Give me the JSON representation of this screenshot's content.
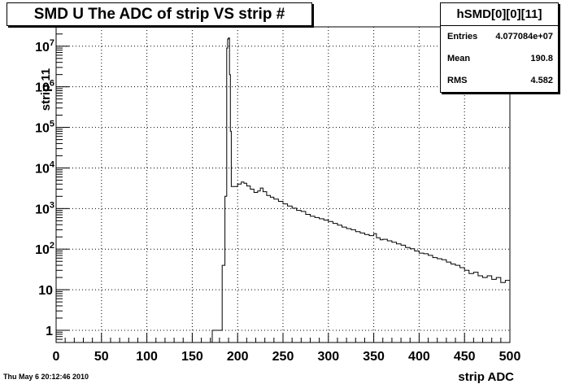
{
  "timestamp": "Thu May  6 20:12:46 2010",
  "stats": {
    "name": "hSMD[0][0][11]",
    "rows": [
      {
        "label": "Entries",
        "value": "4.077084e+07"
      },
      {
        "label": "Mean",
        "value": "190.8"
      },
      {
        "label": "RMS",
        "value": "4.582"
      }
    ]
  },
  "chart_data": {
    "type": "line",
    "title": "SMD U The ADC of strip VS strip #",
    "xlabel": "strip ADC",
    "ylabel": "strip 11",
    "xlim": [
      0,
      500
    ],
    "ylim": [
      0.5,
      30000000
    ],
    "log_y": true,
    "grid": true,
    "x_ticks": [
      {
        "v": 0,
        "label": "0"
      },
      {
        "v": 50,
        "label": "50"
      },
      {
        "v": 100,
        "label": "100"
      },
      {
        "v": 150,
        "label": "150"
      },
      {
        "v": 200,
        "label": "200"
      },
      {
        "v": 250,
        "label": "250"
      },
      {
        "v": 300,
        "label": "300"
      },
      {
        "v": 350,
        "label": "350"
      },
      {
        "v": 400,
        "label": "400"
      },
      {
        "v": 450,
        "label": "450"
      },
      {
        "v": 500,
        "label": "500"
      }
    ],
    "y_ticks": [
      {
        "v": 1,
        "label": "1",
        "exp": ""
      },
      {
        "v": 10,
        "label": "10",
        "exp": ""
      },
      {
        "v": 100,
        "label": "10",
        "exp": "2"
      },
      {
        "v": 1000,
        "label": "10",
        "exp": "3"
      },
      {
        "v": 10000,
        "label": "10",
        "exp": "4"
      },
      {
        "v": 100000,
        "label": "10",
        "exp": "5"
      },
      {
        "v": 1000000,
        "label": "10",
        "exp": "6"
      },
      {
        "v": 10000000,
        "label": "10",
        "exp": "7"
      }
    ],
    "series": [
      {
        "values": [
          [
            172,
            1
          ],
          [
            176,
            1
          ],
          [
            183,
            40
          ],
          [
            186,
            2000
          ],
          [
            188,
            9000000
          ],
          [
            189,
            15000000
          ],
          [
            190,
            16000000
          ],
          [
            191,
            2000000
          ],
          [
            192,
            80000
          ],
          [
            193,
            3500
          ],
          [
            196,
            3500
          ],
          [
            200,
            4000
          ],
          [
            204,
            4500
          ],
          [
            207,
            4200
          ],
          [
            210,
            3600
          ],
          [
            214,
            3000
          ],
          [
            218,
            2500
          ],
          [
            222,
            2700
          ],
          [
            225,
            3200
          ],
          [
            228,
            2600
          ],
          [
            232,
            2100
          ],
          [
            236,
            1900
          ],
          [
            240,
            1700
          ],
          [
            245,
            1500
          ],
          [
            250,
            1300
          ],
          [
            255,
            1150
          ],
          [
            260,
            1020
          ],
          [
            265,
            900
          ],
          [
            270,
            850
          ],
          [
            275,
            720
          ],
          [
            280,
            650
          ],
          [
            285,
            600
          ],
          [
            290,
            560
          ],
          [
            295,
            520
          ],
          [
            300,
            480
          ],
          [
            305,
            430
          ],
          [
            310,
            390
          ],
          [
            315,
            350
          ],
          [
            320,
            320
          ],
          [
            325,
            300
          ],
          [
            330,
            270
          ],
          [
            335,
            250
          ],
          [
            340,
            230
          ],
          [
            345,
            215
          ],
          [
            350,
            240
          ],
          [
            353,
            190
          ],
          [
            357,
            170
          ],
          [
            360,
            175
          ],
          [
            365,
            160
          ],
          [
            370,
            148
          ],
          [
            375,
            135
          ],
          [
            380,
            125
          ],
          [
            385,
            110
          ],
          [
            390,
            102
          ],
          [
            395,
            90
          ],
          [
            400,
            80
          ],
          [
            405,
            77
          ],
          [
            410,
            70
          ],
          [
            415,
            62
          ],
          [
            420,
            58
          ],
          [
            425,
            55
          ],
          [
            430,
            48
          ],
          [
            435,
            43
          ],
          [
            440,
            40
          ],
          [
            445,
            35
          ],
          [
            450,
            30
          ],
          [
            455,
            25
          ],
          [
            460,
            27
          ],
          [
            465,
            22
          ],
          [
            470,
            20
          ],
          [
            475,
            22
          ],
          [
            480,
            18
          ],
          [
            485,
            20
          ],
          [
            490,
            15
          ],
          [
            495,
            17
          ],
          [
            500,
            19
          ]
        ]
      }
    ]
  }
}
